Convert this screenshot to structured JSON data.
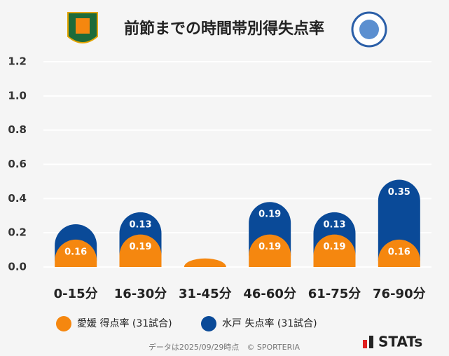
{
  "chart_data": {
    "type": "stacked-bar",
    "title": "前節までの時間帯別得失点率",
    "categories": [
      "0-15分",
      "16-30分",
      "31-45分",
      "46-60分",
      "61-75分",
      "76-90分"
    ],
    "series": [
      {
        "name": "愛媛 得点率 (31試合)",
        "color": "#f5870f",
        "values": [
          0.16,
          0.19,
          0.05,
          0.19,
          0.19,
          0.16
        ],
        "value_labels": [
          "0.16",
          "0.19",
          null,
          "0.19",
          "0.19",
          "0.16"
        ]
      },
      {
        "name": "水戸 失点率 (31試合)",
        "color": "#0a4a98",
        "values": [
          0.09,
          0.13,
          0,
          0.19,
          0.13,
          0.35
        ],
        "value_labels": [
          null,
          "0.13",
          null,
          "0.19",
          "0.13",
          "0.35"
        ]
      }
    ],
    "ylim": [
      0,
      1.2
    ],
    "yticks": [
      {
        "value": 0,
        "label": "0.0"
      },
      0.2,
      0.4,
      0.6,
      0.8,
      {
        "value": 1,
        "label": "1.0"
      },
      1.2
    ],
    "grid": true,
    "source": "データは2025/09/29時点　© SPORTERIA",
    "brand": "STATs"
  }
}
